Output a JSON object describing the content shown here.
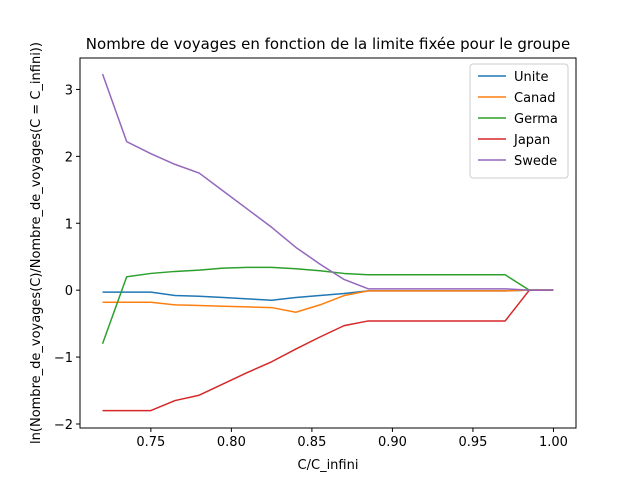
{
  "chart_data": {
    "type": "line",
    "title": "Nombre de voyages en fonction de la limite fixée pour le groupe",
    "xlabel": "C/C_infini",
    "ylabel": "ln(Nombre_de_voyages(C)/Nombre_de_voyages(C = C_infini))",
    "xlim": [
      0.706,
      1.014
    ],
    "ylim": [
      -2.06,
      3.47
    ],
    "xticks": [
      0.75,
      0.8,
      0.85,
      0.9,
      0.95,
      1.0
    ],
    "xtick_labels": [
      "0.75",
      "0.80",
      "0.85",
      "0.90",
      "0.95",
      "1.00"
    ],
    "yticks": [
      -2,
      -1,
      0,
      1,
      2,
      3
    ],
    "ytick_labels": [
      "−2",
      "−1",
      "0",
      "1",
      "2",
      "3"
    ],
    "grid": false,
    "legend_position": "top-right",
    "x": [
      0.72,
      0.735,
      0.75,
      0.765,
      0.78,
      0.795,
      0.81,
      0.825,
      0.84,
      0.855,
      0.87,
      0.885,
      0.97,
      0.985,
      1.0
    ],
    "series": [
      {
        "name": "Unite",
        "color": "#1f77b4",
        "values": [
          -0.03,
          -0.03,
          -0.03,
          -0.08,
          -0.09,
          -0.11,
          -0.13,
          -0.15,
          -0.11,
          -0.08,
          -0.05,
          -0.01,
          -0.01,
          0.0,
          0.0
        ]
      },
      {
        "name": "Canad",
        "color": "#ff7f0e",
        "values": [
          -0.18,
          -0.18,
          -0.18,
          -0.22,
          -0.23,
          -0.24,
          -0.25,
          -0.26,
          -0.33,
          -0.22,
          -0.08,
          -0.01,
          -0.01,
          0.0,
          0.0
        ]
      },
      {
        "name": "Germa",
        "color": "#2ca02c",
        "values": [
          -0.8,
          0.2,
          0.25,
          0.28,
          0.3,
          0.33,
          0.34,
          0.34,
          0.32,
          0.29,
          0.25,
          0.23,
          0.23,
          0.0,
          0.0
        ]
      },
      {
        "name": "Japan",
        "color": "#d62728",
        "values": [
          -1.8,
          -1.8,
          -1.8,
          -1.65,
          -1.57,
          -1.4,
          -1.23,
          -1.07,
          -0.88,
          -0.7,
          -0.53,
          -0.46,
          -0.46,
          0.0,
          0.0
        ]
      },
      {
        "name": "Swede",
        "color": "#9467bd",
        "values": [
          3.23,
          2.22,
          2.04,
          1.88,
          1.75,
          1.48,
          1.21,
          0.94,
          0.64,
          0.39,
          0.16,
          0.02,
          0.02,
          0.0,
          0.0
        ]
      }
    ]
  }
}
